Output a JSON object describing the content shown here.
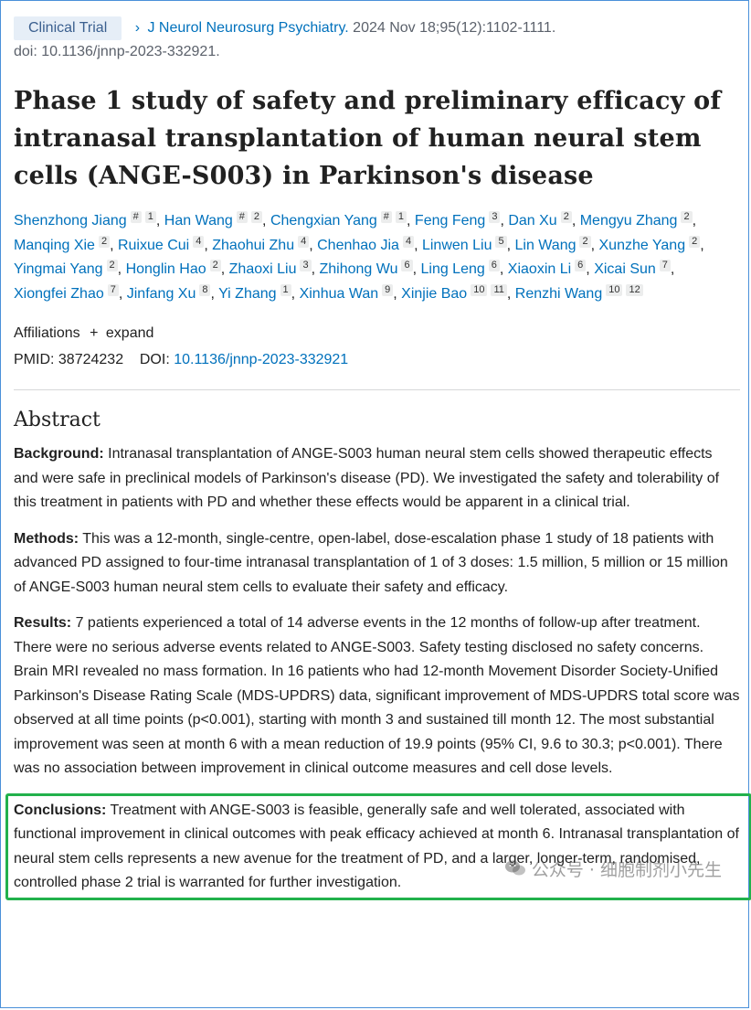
{
  "header": {
    "badge": "Clinical Trial",
    "journal": "J Neurol Neurosurg Psychiatry.",
    "citation": " 2024 Nov 18;95(12):1102-1111.",
    "doi_line": "doi: 10.1136/jnnp-2023-332921."
  },
  "title": "Phase 1 study of safety and preliminary efficacy of intranasal transplantation of human neural stem cells (ANGE-S003) in Parkinson's disease",
  "authors": [
    {
      "name": "Shenzhong Jiang",
      "sups": [
        "#",
        "1"
      ]
    },
    {
      "name": "Han Wang",
      "sups": [
        "#",
        "2"
      ]
    },
    {
      "name": "Chengxian Yang",
      "sups": [
        "#",
        "1"
      ]
    },
    {
      "name": "Feng Feng",
      "sups": [
        "3"
      ]
    },
    {
      "name": "Dan Xu",
      "sups": [
        "2"
      ]
    },
    {
      "name": "Mengyu Zhang",
      "sups": [
        "2"
      ]
    },
    {
      "name": "Manqing Xie",
      "sups": [
        "2"
      ]
    },
    {
      "name": "Ruixue Cui",
      "sups": [
        "4"
      ]
    },
    {
      "name": "Zhaohui Zhu",
      "sups": [
        "4"
      ]
    },
    {
      "name": "Chenhao Jia",
      "sups": [
        "4"
      ]
    },
    {
      "name": "Linwen Liu",
      "sups": [
        "5"
      ]
    },
    {
      "name": "Lin Wang",
      "sups": [
        "2"
      ]
    },
    {
      "name": "Xunzhe Yang",
      "sups": [
        "2"
      ]
    },
    {
      "name": "Yingmai Yang",
      "sups": [
        "2"
      ]
    },
    {
      "name": "Honglin Hao",
      "sups": [
        "2"
      ]
    },
    {
      "name": "Zhaoxi Liu",
      "sups": [
        "3"
      ]
    },
    {
      "name": "Zhihong Wu",
      "sups": [
        "6"
      ]
    },
    {
      "name": "Ling Leng",
      "sups": [
        "6"
      ]
    },
    {
      "name": "Xiaoxin Li",
      "sups": [
        "6"
      ]
    },
    {
      "name": "Xicai Sun",
      "sups": [
        "7"
      ]
    },
    {
      "name": "Xiongfei Zhao",
      "sups": [
        "7"
      ]
    },
    {
      "name": "Jinfang Xu",
      "sups": [
        "8"
      ]
    },
    {
      "name": "Yi Zhang",
      "sups": [
        "1"
      ]
    },
    {
      "name": "Xinhua Wan",
      "sups": [
        "9"
      ]
    },
    {
      "name": "Xinjie Bao",
      "sups": [
        "10",
        "11"
      ]
    },
    {
      "name": "Renzhi Wang",
      "sups": [
        "10",
        "12"
      ]
    }
  ],
  "affiliations": {
    "label": "Affiliations",
    "plus": "+",
    "expand": "expand"
  },
  "ids": {
    "pmid_label": "PMID:",
    "pmid": "38724232",
    "doi_label": "DOI:",
    "doi": "10.1136/jnnp-2023-332921"
  },
  "abstract": {
    "heading": "Abstract",
    "sections": [
      {
        "label": "Background:",
        "text": " Intranasal transplantation of ANGE-S003 human neural stem cells showed therapeutic effects and were safe in preclinical models of Parkinson's disease (PD). We investigated the safety and tolerability of this treatment in patients with PD and whether these effects would be apparent in a clinical trial."
      },
      {
        "label": "Methods:",
        "text": " This was a 12-month, single-centre, open-label, dose-escalation phase 1 study of 18 patients with advanced PD assigned to four-time intranasal transplantation of 1 of 3 doses: 1.5 million, 5 million or 15 million of ANGE-S003 human neural stem cells to evaluate their safety and efficacy."
      },
      {
        "label": "Results:",
        "text": " 7 patients experienced a total of 14 adverse events in the 12 months of follow-up after treatment. There were no serious adverse events related to ANGE-S003. Safety testing disclosed no safety concerns. Brain MRI revealed no mass formation. In 16 patients who had 12-month Movement Disorder Society-Unified Parkinson's Disease Rating Scale (MDS-UPDRS) data, significant improvement of MDS-UPDRS total score was observed at all time points (p<0.001), starting with month 3 and sustained till month 12. The most substantial improvement was seen at month 6 with a mean reduction of 19.9 points (95% CI, 9.6 to 30.3; p<0.001). There was no association between improvement in clinical outcome measures and cell dose levels."
      }
    ],
    "conclusion": {
      "label": "Conclusions:",
      "text": " Treatment with ANGE-S003 is feasible, generally safe and well tolerated, associated with functional improvement in clinical outcomes with peak efficacy achieved at month 6. Intranasal transplantation of neural stem cells represents a new avenue for the treatment of PD, and a larger, longer-term, randomised, controlled phase 2 trial is warranted for further investigation."
    }
  },
  "watermark": {
    "text": "公众号 · 细胞制剂小先生",
    "icon": "wechat-icon"
  },
  "colors": {
    "link": "#0071bc",
    "highlight_box": "#22b14c",
    "frame": "#4a90d9"
  }
}
